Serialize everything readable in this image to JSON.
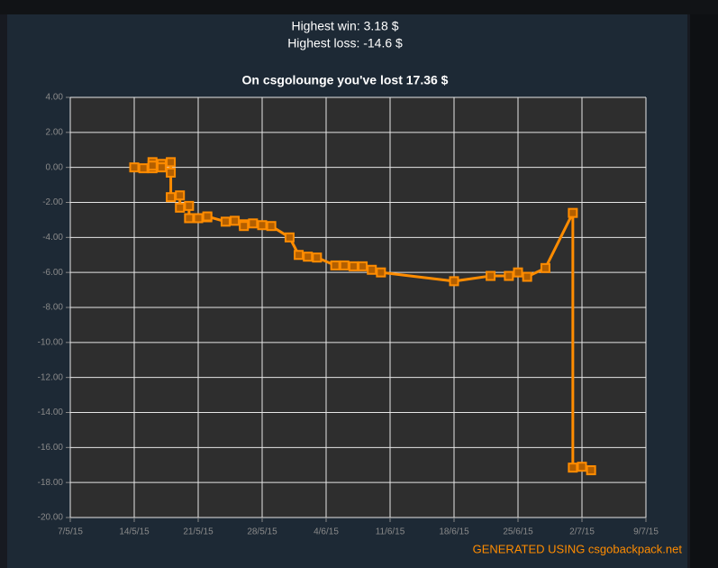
{
  "chart_data": {
    "type": "line",
    "subtitle": [
      "Highest win: 3.18 $",
      "Highest loss: -14.6 $"
    ],
    "title": "On csgolounge you've lost 17.36 $",
    "credit": "GENERATED USING csgobackpack.net",
    "color": "#ff8c00",
    "grid": true,
    "x": [
      "2015-05-14",
      "2015-05-15",
      "2015-05-16",
      "2015-05-16",
      "2015-05-16",
      "2015-05-17",
      "2015-05-17",
      "2015-05-18",
      "2015-05-18",
      "2015-05-18",
      "2015-05-19",
      "2015-05-19",
      "2015-05-20",
      "2015-05-20",
      "2015-05-21",
      "2015-05-22",
      "2015-05-22",
      "2015-05-24",
      "2015-05-25",
      "2015-05-26",
      "2015-05-26",
      "2015-05-27",
      "2015-05-28",
      "2015-05-29",
      "2015-05-31",
      "2015-06-01",
      "2015-06-02",
      "2015-06-03",
      "2015-06-05",
      "2015-06-06",
      "2015-06-07",
      "2015-06-08",
      "2015-06-09",
      "2015-06-10",
      "2015-06-18",
      "2015-06-22",
      "2015-06-24",
      "2015-06-25",
      "2015-06-26",
      "2015-06-28",
      "2015-07-01",
      "2015-07-01",
      "2015-07-02",
      "2015-07-03"
    ],
    "values": [
      0.0,
      -0.05,
      -0.05,
      0.3,
      0.1,
      0.2,
      0.0,
      0.3,
      -0.3,
      -1.7,
      -1.6,
      -2.3,
      -2.2,
      -2.9,
      -2.9,
      -2.85,
      -2.8,
      -3.1,
      -3.05,
      -3.25,
      -3.35,
      -3.2,
      -3.3,
      -3.35,
      -4.0,
      -5.0,
      -5.1,
      -5.15,
      -5.6,
      -5.6,
      -5.65,
      -5.65,
      -5.85,
      -6.0,
      -6.5,
      -6.2,
      -6.2,
      -6.0,
      -6.25,
      -5.75,
      -2.6,
      -17.15,
      -17.1,
      -17.3
    ],
    "xlim": [
      "2015-05-07",
      "2015-07-09"
    ],
    "xticks": [
      {
        "value": "2015-05-07",
        "label": "7/5/15"
      },
      {
        "value": "2015-05-14",
        "label": "14/5/15"
      },
      {
        "value": "2015-05-21",
        "label": "21/5/15"
      },
      {
        "value": "2015-05-28",
        "label": "28/5/15"
      },
      {
        "value": "2015-06-04",
        "label": "4/6/15"
      },
      {
        "value": "2015-06-11",
        "label": "11/6/15"
      },
      {
        "value": "2015-06-18",
        "label": "18/6/15"
      },
      {
        "value": "2015-06-25",
        "label": "25/6/15"
      },
      {
        "value": "2015-07-02",
        "label": "2/7/15"
      },
      {
        "value": "2015-07-09",
        "label": "9/7/15"
      }
    ],
    "ylim": [
      -20,
      4
    ],
    "yticks": [
      {
        "value": 4,
        "label": "4.00"
      },
      {
        "value": 2,
        "label": "2.00"
      },
      {
        "value": 0,
        "label": "0.00"
      },
      {
        "value": -2,
        "label": "-2.00"
      },
      {
        "value": -4,
        "label": "-4.00"
      },
      {
        "value": -6,
        "label": "-6.00"
      },
      {
        "value": -8,
        "label": "-8.00"
      },
      {
        "value": -10,
        "label": "-10.00"
      },
      {
        "value": -12,
        "label": "-12.00"
      },
      {
        "value": -14,
        "label": "-14.00"
      },
      {
        "value": -16,
        "label": "-16.00"
      },
      {
        "value": -18,
        "label": "-18.00"
      },
      {
        "value": -20,
        "label": "-20.00"
      }
    ]
  }
}
